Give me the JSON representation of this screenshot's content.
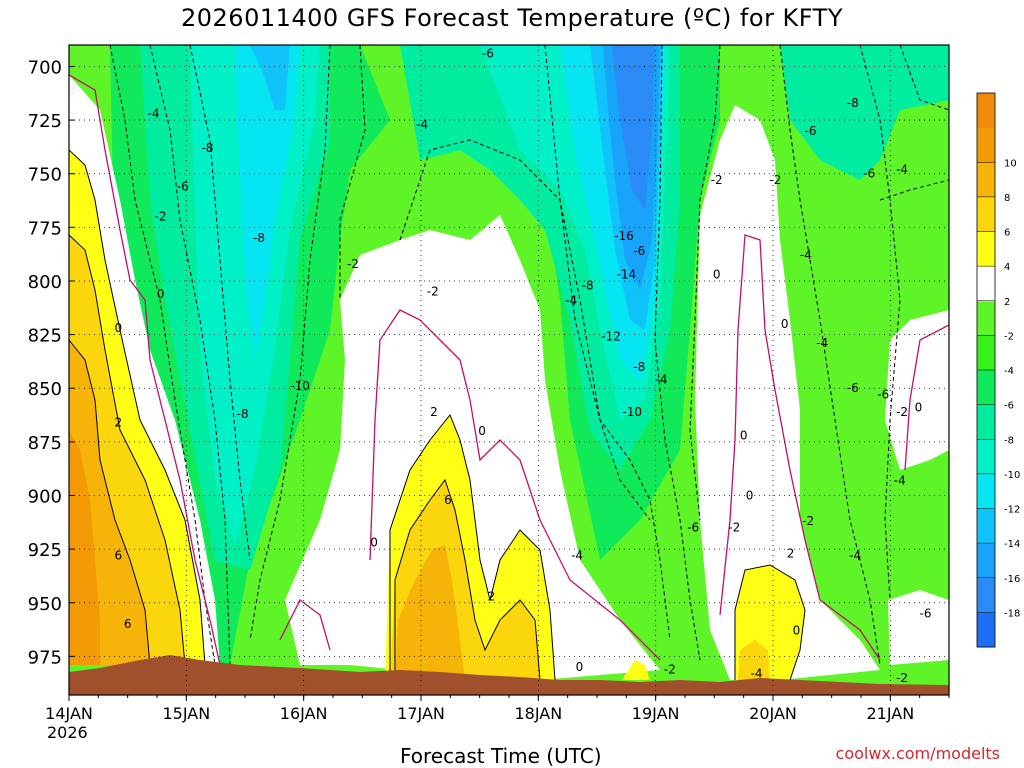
{
  "chart_data": {
    "type": "heatmap",
    "title": "2026011400 GFS Forecast Temperature (ºC) for KFTY",
    "xlabel": "Forecast Time (UTC)",
    "ylabel": "",
    "credit": "coolwx.com/modelts",
    "x_ticks": [
      "14JAN",
      "15JAN",
      "16JAN",
      "17JAN",
      "18JAN",
      "19JAN",
      "20JAN",
      "21JAN"
    ],
    "x_year_label": "2026",
    "x_range_days": [
      0,
      7.5
    ],
    "y_ticks": [
      700,
      725,
      750,
      775,
      800,
      825,
      850,
      875,
      900,
      925,
      950,
      975
    ],
    "y_range_hpa": [
      690,
      993
    ],
    "colorbar": {
      "levels": [
        -20,
        -18,
        -16,
        -14,
        -12,
        -10,
        -8,
        -6,
        -4,
        -2,
        2,
        4,
        6,
        8,
        10,
        12
      ],
      "colors": [
        "#1e6ff5",
        "#2a8af6",
        "#18a4fb",
        "#10c4fb",
        "#06e6f2",
        "#00f0c8",
        "#00eca0",
        "#10ea5a",
        "#38f01c",
        "#5ef428",
        "#ffffff",
        "#ffff16",
        "#fbd60c",
        "#f7b408",
        "#f49a06",
        "#f08a0a"
      ],
      "tick_labels": [
        "-18",
        "-16",
        "-14",
        "-12",
        "-10",
        "-8",
        "-6",
        "-4",
        "-2",
        "2",
        "4",
        "6",
        "8",
        "10"
      ]
    },
    "grid": true,
    "ground_color": "#a0502c",
    "contour_labels": [
      {
        "text": "-4",
        "day": 0.72,
        "p": 722
      },
      {
        "text": "-8",
        "day": 1.18,
        "p": 738
      },
      {
        "text": "-6",
        "day": 0.97,
        "p": 756
      },
      {
        "text": "-2",
        "day": 0.78,
        "p": 770
      },
      {
        "text": "-8",
        "day": 1.62,
        "p": 780
      },
      {
        "text": "0",
        "day": 0.78,
        "p": 806
      },
      {
        "text": "0",
        "day": 0.42,
        "p": 822
      },
      {
        "text": "2",
        "day": 0.42,
        "p": 866
      },
      {
        "text": "6",
        "day": 0.42,
        "p": 928
      },
      {
        "text": "6",
        "day": 0.5,
        "p": 960
      },
      {
        "text": "-8",
        "day": 1.48,
        "p": 862
      },
      {
        "text": "-10",
        "day": 1.97,
        "p": 849
      },
      {
        "text": "-2",
        "day": 2.42,
        "p": 792
      },
      {
        "text": "-4",
        "day": 3.01,
        "p": 727
      },
      {
        "text": "-2",
        "day": 3.1,
        "p": 805
      },
      {
        "text": "2",
        "day": 3.11,
        "p": 861
      },
      {
        "text": "0",
        "day": 2.6,
        "p": 922
      },
      {
        "text": "6",
        "day": 3.23,
        "p": 902
      },
      {
        "text": "0",
        "day": 3.52,
        "p": 870
      },
      {
        "text": "2",
        "day": 3.6,
        "p": 947
      },
      {
        "text": "-6",
        "day": 3.57,
        "p": 694
      },
      {
        "text": "-8",
        "day": 4.42,
        "p": 802
      },
      {
        "text": "-4",
        "day": 4.28,
        "p": 809
      },
      {
        "text": "-16",
        "day": 4.73,
        "p": 779
      },
      {
        "text": "-14",
        "day": 4.75,
        "p": 797
      },
      {
        "text": "-6",
        "day": 4.86,
        "p": 786
      },
      {
        "text": "-12",
        "day": 4.62,
        "p": 826
      },
      {
        "text": "-8",
        "day": 4.86,
        "p": 840
      },
      {
        "text": "-10",
        "day": 4.8,
        "p": 861
      },
      {
        "text": "-4",
        "day": 5.05,
        "p": 846
      },
      {
        "text": "-4",
        "day": 4.33,
        "p": 928
      },
      {
        "text": "0",
        "day": 4.35,
        "p": 980
      },
      {
        "text": "-2",
        "day": 5.12,
        "p": 981
      },
      {
        "text": "-2",
        "day": 5.52,
        "p": 753
      },
      {
        "text": "0",
        "day": 5.52,
        "p": 797
      },
      {
        "text": "-6",
        "day": 5.32,
        "p": 915
      },
      {
        "text": "-2",
        "day": 5.67,
        "p": 915
      },
      {
        "text": "0",
        "day": 5.75,
        "p": 872
      },
      {
        "text": "0",
        "day": 5.8,
        "p": 900
      },
      {
        "text": "-4",
        "day": 5.86,
        "p": 983
      },
      {
        "text": "2",
        "day": 6.15,
        "p": 927
      },
      {
        "text": "0",
        "day": 6.2,
        "p": 963
      },
      {
        "text": "-2",
        "day": 6.02,
        "p": 753
      },
      {
        "text": "0",
        "day": 6.1,
        "p": 820
      },
      {
        "text": "-6",
        "day": 6.32,
        "p": 730
      },
      {
        "text": "-8",
        "day": 6.68,
        "p": 717
      },
      {
        "text": "-4",
        "day": 6.28,
        "p": 788
      },
      {
        "text": "-4",
        "day": 6.42,
        "p": 829
      },
      {
        "text": "-6",
        "day": 6.68,
        "p": 850
      },
      {
        "text": "-2",
        "day": 6.3,
        "p": 912
      },
      {
        "text": "-6",
        "day": 6.82,
        "p": 750
      },
      {
        "text": "-4",
        "day": 7.1,
        "p": 748
      },
      {
        "text": "-6",
        "day": 6.94,
        "p": 853
      },
      {
        "text": "-2",
        "day": 7.1,
        "p": 861
      },
      {
        "text": "0",
        "day": 7.24,
        "p": 859
      },
      {
        "text": "-4",
        "day": 6.7,
        "p": 928
      },
      {
        "text": "-4",
        "day": 7.08,
        "p": 893
      },
      {
        "text": "-6",
        "day": 7.3,
        "p": 955
      },
      {
        "text": "-2",
        "day": 7.1,
        "p": 985
      }
    ]
  }
}
